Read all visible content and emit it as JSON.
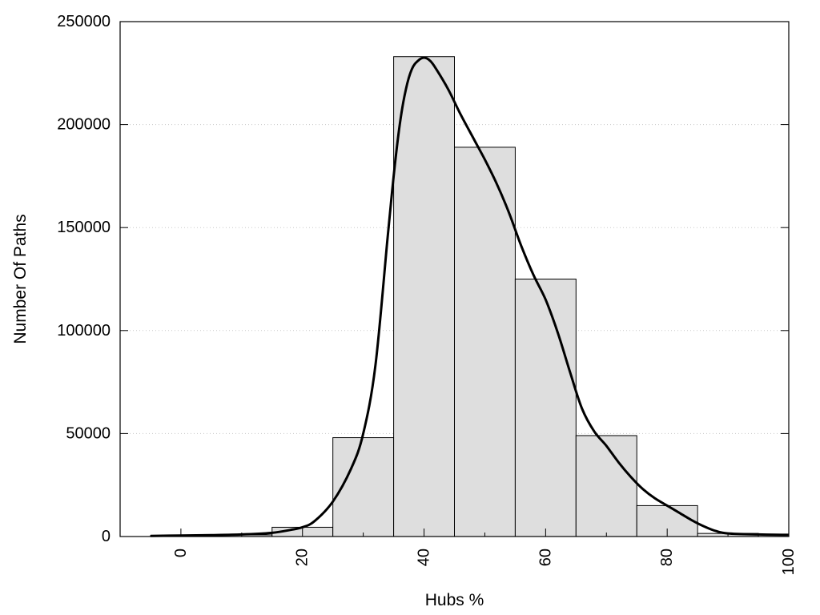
{
  "chart_data": {
    "type": "bar",
    "title": "",
    "xlabel": "Hubs %",
    "ylabel": "Number Of Paths",
    "xlim": [
      -10,
      100
    ],
    "ylim": [
      0,
      250000
    ],
    "x_ticks": [
      0,
      20,
      40,
      60,
      80,
      100
    ],
    "y_ticks": [
      0,
      50000,
      100000,
      150000,
      200000,
      250000
    ],
    "grid": "horizontal dotted",
    "legend": "none",
    "bar_width": 10,
    "bars": [
      {
        "x": 0,
        "value": 500
      },
      {
        "x": 10,
        "value": 800
      },
      {
        "x": 20,
        "value": 4500
      },
      {
        "x": 30,
        "value": 48000
      },
      {
        "x": 40,
        "value": 233000
      },
      {
        "x": 50,
        "value": 189000
      },
      {
        "x": 60,
        "value": 125000
      },
      {
        "x": 70,
        "value": 49000
      },
      {
        "x": 80,
        "value": 15000
      },
      {
        "x": 90,
        "value": 1500
      }
    ],
    "curve": {
      "x": [
        -5,
        0,
        5,
        10,
        15,
        18,
        20,
        22,
        25,
        28,
        30,
        32,
        34,
        35,
        36,
        37,
        38,
        39,
        40,
        41,
        42,
        44,
        46,
        48,
        50,
        52,
        54,
        56,
        58,
        60,
        62,
        64,
        66,
        68,
        70,
        72,
        74,
        76,
        78,
        80,
        82,
        84,
        86,
        88,
        90,
        95,
        100
      ],
      "y": [
        300,
        500,
        700,
        1000,
        1800,
        3200,
        4500,
        7500,
        17000,
        33000,
        50000,
        83000,
        145000,
        175000,
        200000,
        217000,
        227000,
        231000,
        232500,
        231000,
        227000,
        217000,
        205000,
        194000,
        183000,
        171000,
        157000,
        141000,
        127000,
        115000,
        99000,
        80000,
        62000,
        51000,
        44000,
        36000,
        29000,
        23000,
        18500,
        15000,
        11500,
        8000,
        5000,
        2700,
        1500,
        1000,
        800
      ],
      "color": "#000000"
    },
    "bar_fill": "#dedede",
    "bar_stroke": "#000000"
  }
}
